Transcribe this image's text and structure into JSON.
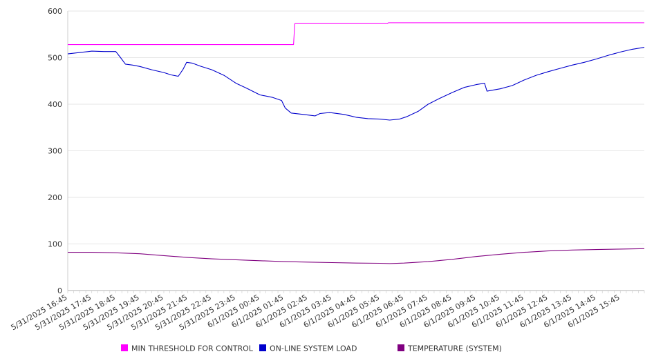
{
  "chart_data": {
    "type": "line",
    "title": "",
    "xlabel": "",
    "ylabel": "",
    "ylim": [
      0,
      600
    ],
    "yticks": [
      0,
      100,
      200,
      300,
      400,
      500,
      600
    ],
    "grid": true,
    "legend_position": "bottom",
    "x_tick_labels": [
      "5/31/2025 16:45",
      "5/31/2025 17:45",
      "5/31/2025 18:45",
      "5/31/2025 19:45",
      "5/31/2025 20:45",
      "5/31/2025 21:45",
      "5/31/2025 22:45",
      "5/31/2025 23:45",
      "6/1/2025 00:45",
      "6/1/2025 01:45",
      "6/1/2025 02:45",
      "6/1/2025 03:45",
      "6/1/2025 04:45",
      "6/1/2025 05:45",
      "6/1/2025 06:45",
      "6/1/2025 07:45",
      "6/1/2025 08:45",
      "6/1/2025 09:45",
      "6/1/2025 10:45",
      "6/1/2025 11:45",
      "6/1/2025 12:45",
      "6/1/2025 13:45",
      "6/1/2025 14:45",
      "6/1/2025 15:45"
    ],
    "x_range_hours": [
      0,
      24
    ],
    "series": [
      {
        "name": "MIN THRESHOLD FOR CONTROL",
        "color": "#ff00ff",
        "points": [
          [
            0,
            528
          ],
          [
            9.4,
            528
          ],
          [
            9.45,
            573
          ],
          [
            13.3,
            573
          ],
          [
            13.35,
            575
          ],
          [
            24,
            575
          ]
        ]
      },
      {
        "name": "ON-LINE SYSTEM LOAD",
        "color": "#0000cc",
        "points": [
          [
            0,
            508
          ],
          [
            0.5,
            511
          ],
          [
            1.0,
            514
          ],
          [
            1.5,
            513
          ],
          [
            2.0,
            513
          ],
          [
            2.2,
            500
          ],
          [
            2.4,
            486
          ],
          [
            2.7,
            484
          ],
          [
            3.0,
            481
          ],
          [
            3.5,
            474
          ],
          [
            4.0,
            468
          ],
          [
            4.3,
            463
          ],
          [
            4.6,
            460
          ],
          [
            4.8,
            475
          ],
          [
            4.95,
            490
          ],
          [
            5.2,
            488
          ],
          [
            5.5,
            482
          ],
          [
            6.0,
            474
          ],
          [
            6.5,
            462
          ],
          [
            7.0,
            445
          ],
          [
            7.5,
            433
          ],
          [
            8.0,
            420
          ],
          [
            8.5,
            415
          ],
          [
            8.9,
            408
          ],
          [
            9.05,
            392
          ],
          [
            9.3,
            381
          ],
          [
            9.8,
            378
          ],
          [
            10.3,
            375
          ],
          [
            10.5,
            380
          ],
          [
            10.9,
            382
          ],
          [
            11.5,
            378
          ],
          [
            12.0,
            372
          ],
          [
            12.5,
            369
          ],
          [
            13.0,
            368
          ],
          [
            13.4,
            366
          ],
          [
            13.8,
            368
          ],
          [
            14.1,
            373
          ],
          [
            14.6,
            385
          ],
          [
            15.0,
            400
          ],
          [
            15.5,
            413
          ],
          [
            16.0,
            425
          ],
          [
            16.5,
            436
          ],
          [
            17.0,
            442
          ],
          [
            17.35,
            445
          ],
          [
            17.45,
            428
          ],
          [
            18.0,
            433
          ],
          [
            18.5,
            440
          ],
          [
            19.0,
            452
          ],
          [
            19.5,
            462
          ],
          [
            20.0,
            470
          ],
          [
            20.5,
            477
          ],
          [
            21.0,
            484
          ],
          [
            21.5,
            490
          ],
          [
            22.0,
            497
          ],
          [
            22.5,
            505
          ],
          [
            23.0,
            512
          ],
          [
            23.5,
            518
          ],
          [
            24.0,
            522
          ]
        ]
      },
      {
        "name": "TEMPERATURE (SYSTEM)",
        "color": "#800080",
        "points": [
          [
            0,
            82
          ],
          [
            1,
            82
          ],
          [
            2,
            81
          ],
          [
            3,
            79
          ],
          [
            4,
            75
          ],
          [
            5,
            71
          ],
          [
            6,
            68
          ],
          [
            7,
            66
          ],
          [
            8,
            64
          ],
          [
            9,
            62
          ],
          [
            10,
            61
          ],
          [
            11,
            60
          ],
          [
            12,
            59
          ],
          [
            13,
            58.5
          ],
          [
            13.4,
            58
          ],
          [
            14,
            59
          ],
          [
            15,
            62
          ],
          [
            16,
            67
          ],
          [
            17,
            73
          ],
          [
            18,
            78
          ],
          [
            19,
            82
          ],
          [
            20,
            85
          ],
          [
            21,
            87
          ],
          [
            22,
            88
          ],
          [
            23,
            89
          ],
          [
            24,
            90
          ]
        ]
      }
    ]
  }
}
